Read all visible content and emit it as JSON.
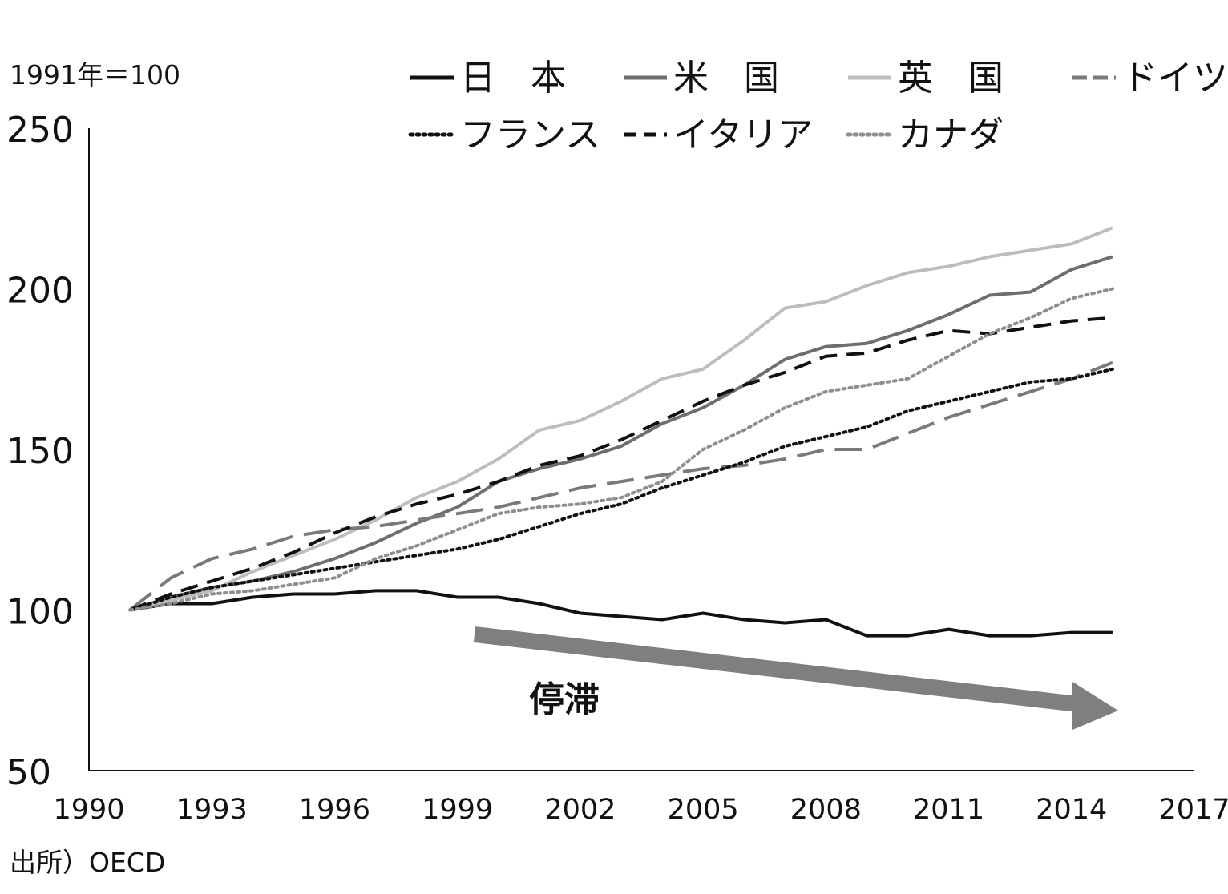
{
  "chart_data": {
    "type": "line",
    "unit_note": "1991年＝100",
    "source_note": "出所）OECD",
    "annotation": "停滞",
    "xlim": [
      1990,
      2017
    ],
    "ylim": [
      50,
      250
    ],
    "x_ticks": [
      1990,
      1993,
      1996,
      1999,
      2002,
      2005,
      2008,
      2011,
      2014,
      2017
    ],
    "y_ticks": [
      50,
      100,
      150,
      200,
      250
    ],
    "x": [
      1991,
      1992,
      1993,
      1994,
      1995,
      1996,
      1997,
      1998,
      1999,
      2000,
      2001,
      2002,
      2003,
      2004,
      2005,
      2006,
      2007,
      2008,
      2009,
      2010,
      2011,
      2012,
      2013,
      2014,
      2015
    ],
    "series": [
      {
        "name": "日　本",
        "color": "#111111",
        "dash": "solid",
        "values": [
          100,
          102,
          102,
          104,
          105,
          105,
          106,
          106,
          104,
          104,
          102,
          99,
          98,
          97,
          99,
          97,
          96,
          97,
          92,
          92,
          94,
          92,
          92,
          93,
          93
        ]
      },
      {
        "name": "米　国",
        "color": "#6e6e6e",
        "dash": "solid",
        "values": [
          100,
          104,
          107,
          109,
          112,
          116,
          121,
          127,
          132,
          140,
          144,
          147,
          151,
          158,
          163,
          170,
          178,
          182,
          183,
          187,
          192,
          198,
          199,
          206,
          210
        ]
      },
      {
        "name": "英　国",
        "color": "#bdbdbd",
        "dash": "solid",
        "values": [
          100,
          103,
          106,
          112,
          117,
          122,
          128,
          135,
          140,
          147,
          156,
          159,
          165,
          172,
          175,
          184,
          194,
          196,
          201,
          205,
          207,
          210,
          212,
          214,
          219
        ]
      },
      {
        "name": "ドイツ",
        "color": "#7a7a7a",
        "dash": "longdash",
        "values": [
          100,
          110,
          116,
          119,
          123,
          125,
          126,
          128,
          130,
          132,
          135,
          138,
          140,
          142,
          144,
          145,
          147,
          150,
          150,
          155,
          160,
          164,
          168,
          172,
          177
        ]
      },
      {
        "name": "フランス",
        "color": "#111111",
        "dash": "dot",
        "values": [
          100,
          104,
          107,
          109,
          111,
          113,
          115,
          117,
          119,
          122,
          126,
          130,
          133,
          138,
          142,
          146,
          151,
          154,
          157,
          162,
          165,
          168,
          171,
          172,
          175
        ]
      },
      {
        "name": "イタリア",
        "color": "#111111",
        "dash": "dash",
        "values": [
          100,
          105,
          109,
          113,
          118,
          124,
          129,
          133,
          136,
          140,
          145,
          148,
          153,
          159,
          165,
          170,
          174,
          179,
          180,
          184,
          187,
          186,
          188,
          190,
          191
        ]
      },
      {
        "name": "カナダ",
        "color": "#8e8e8e",
        "dash": "dot",
        "values": [
          100,
          102,
          105,
          106,
          108,
          110,
          116,
          120,
          125,
          130,
          132,
          133,
          135,
          140,
          150,
          156,
          163,
          168,
          170,
          172,
          179,
          186,
          191,
          197,
          200
        ]
      }
    ]
  }
}
